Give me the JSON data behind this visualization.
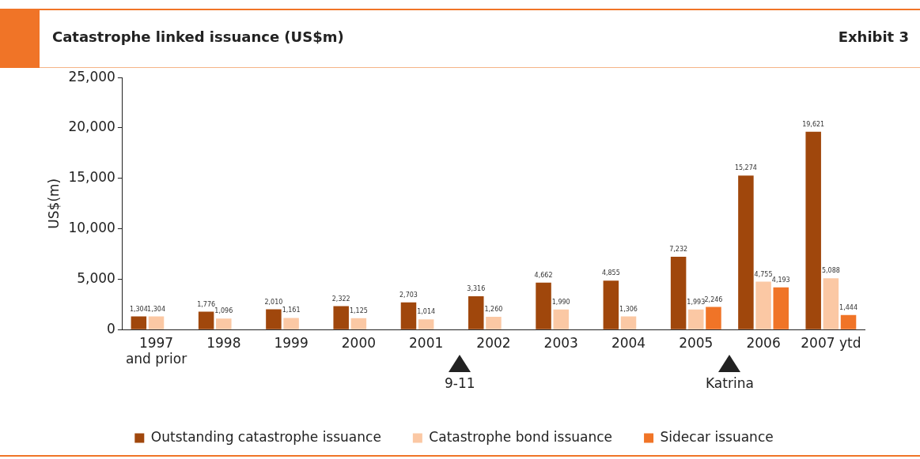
{
  "chart_data": {
    "type": "bar",
    "title": "Catastrophe linked issuance (US$m)",
    "subtitle": "Exhibit 3",
    "ylabel": "US$(m)",
    "categories": [
      "1997 and prior",
      "1998",
      "1999",
      "2000",
      "2001",
      "2002",
      "2003",
      "2004",
      "2005",
      "2006",
      "2007 ytd"
    ],
    "series": [
      {
        "name": "Outstanding catastrophe issuance",
        "color": "#a0470c",
        "values": [
          1304,
          1776,
          2010,
          2322,
          2703,
          3316,
          4662,
          4855,
          7232,
          15274,
          19621
        ],
        "value_labels": [
          "1,304",
          "1,776",
          "2,010",
          "2,322",
          "2,703",
          "3,316",
          "4,662",
          "4,855",
          "7,232",
          "15,274",
          "19,621"
        ]
      },
      {
        "name": "Catastrophe bond issuance",
        "color": "#fbc8a4",
        "values": [
          1304,
          1096,
          1161,
          1125,
          1014,
          1260,
          1990,
          1306,
          1993,
          4755,
          5088
        ],
        "value_labels": [
          "1,304",
          "1,096",
          "1,161",
          "1,125",
          "1,014",
          "1,260",
          "1,990",
          "1,306",
          "1,993",
          "4,755",
          "5,088"
        ]
      },
      {
        "name": "Sidecar issuance",
        "color": "#f07427",
        "values": [
          null,
          null,
          null,
          null,
          null,
          null,
          null,
          null,
          2246,
          4193,
          1444
        ],
        "value_labels": [
          null,
          null,
          null,
          null,
          null,
          null,
          null,
          null,
          "2,246",
          "4,193",
          "1,444"
        ]
      }
    ],
    "annotations": [
      "9-11",
      "Katrina"
    ],
    "ylim": [
      0,
      25000
    ],
    "yticks": [
      {
        "value": 0,
        "label": "0"
      },
      {
        "value": 5000,
        "label": "5,000"
      },
      {
        "value": 10000,
        "label": "10,000"
      },
      {
        "value": 15000,
        "label": "15,000"
      },
      {
        "value": 20000,
        "label": "20,000"
      },
      {
        "value": 25000,
        "label": "25,000"
      }
    ],
    "grid": false,
    "legend": "bottom"
  }
}
